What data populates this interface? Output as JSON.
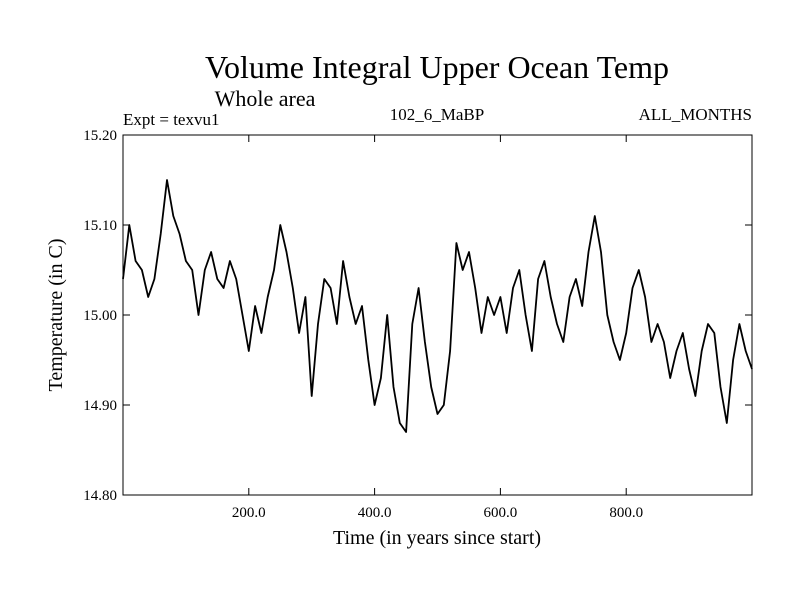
{
  "chart_data": {
    "type": "line",
    "title": "Volume Integral Upper Ocean Temp",
    "subtitle": "Whole area",
    "annotations": {
      "experiment": "Expt = texvu1",
      "run": "102_6_MaBP",
      "period": "ALL_MONTHS"
    },
    "xlabel": "Time (in years since start)",
    "ylabel": "Temperature (in C)",
    "xlim": [
      0,
      1000
    ],
    "ylim": [
      14.8,
      15.2
    ],
    "xticks": [
      200,
      400,
      600,
      800
    ],
    "xtick_labels": [
      "200.0",
      "400.0",
      "600.0",
      "800.0"
    ],
    "yticks": [
      14.8,
      14.9,
      15.0,
      15.1,
      15.2
    ],
    "ytick_labels": [
      "14.80",
      "14.90",
      "15.00",
      "15.10",
      "15.20"
    ],
    "grid": false,
    "series": [
      {
        "name": "texvu1",
        "x": [
          0,
          10,
          20,
          30,
          40,
          50,
          60,
          70,
          80,
          90,
          100,
          110,
          120,
          130,
          140,
          150,
          160,
          170,
          180,
          190,
          200,
          210,
          220,
          230,
          240,
          250,
          260,
          270,
          280,
          290,
          300,
          310,
          320,
          330,
          340,
          350,
          360,
          370,
          380,
          390,
          400,
          410,
          420,
          430,
          440,
          450,
          460,
          470,
          480,
          490,
          500,
          510,
          520,
          530,
          540,
          550,
          560,
          570,
          580,
          590,
          600,
          610,
          620,
          630,
          640,
          650,
          660,
          670,
          680,
          690,
          700,
          710,
          720,
          730,
          740,
          750,
          760,
          770,
          780,
          790,
          800,
          810,
          820,
          830,
          840,
          850,
          860,
          870,
          880,
          890,
          900,
          910,
          920,
          930,
          940,
          950,
          960,
          970,
          980,
          990,
          1000
        ],
        "values": [
          15.04,
          15.1,
          15.06,
          15.05,
          15.02,
          15.04,
          15.09,
          15.15,
          15.11,
          15.09,
          15.06,
          15.05,
          15.0,
          15.05,
          15.07,
          15.04,
          15.03,
          15.06,
          15.04,
          15.0,
          14.96,
          15.01,
          14.98,
          15.02,
          15.05,
          15.1,
          15.07,
          15.03,
          14.98,
          15.02,
          14.91,
          14.99,
          15.04,
          15.03,
          14.99,
          15.06,
          15.02,
          14.99,
          15.01,
          14.95,
          14.9,
          14.93,
          15.0,
          14.92,
          14.88,
          14.87,
          14.99,
          15.03,
          14.97,
          14.92,
          14.89,
          14.9,
          14.96,
          15.08,
          15.05,
          15.07,
          15.03,
          14.98,
          15.02,
          15.0,
          15.02,
          14.98,
          15.03,
          15.05,
          15.0,
          14.96,
          15.04,
          15.06,
          15.02,
          14.99,
          14.97,
          15.02,
          15.04,
          15.01,
          15.07,
          15.11,
          15.07,
          15.0,
          14.97,
          14.95,
          14.98,
          15.03,
          15.05,
          15.02,
          14.97,
          14.99,
          14.97,
          14.93,
          14.96,
          14.98,
          14.94,
          14.91,
          14.96,
          14.99,
          14.98,
          14.92,
          14.88,
          14.95,
          14.99,
          14.96,
          14.94
        ]
      }
    ]
  }
}
